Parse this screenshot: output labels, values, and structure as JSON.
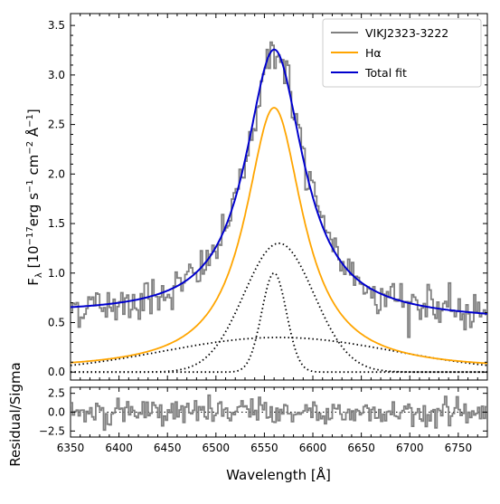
{
  "chart_data": [
    {
      "panel": "main",
      "type": "line",
      "xlim": [
        6350,
        6780
      ],
      "ylim": [
        -0.08,
        3.62
      ],
      "ylabel_main": "F",
      "ylabel_sub": "λ",
      "ylabel_rest": " [10",
      "ylabel_exp1": "−17",
      "ylabel_unit1": "erg s",
      "ylabel_exp2": "−1",
      "ylabel_unit2": " cm",
      "ylabel_exp3": "−2",
      "ylabel_unit3": " Å",
      "ylabel_exp4": "−1",
      "ylabel_end": "]",
      "xticks": [
        6350,
        6400,
        6450,
        6500,
        6550,
        6600,
        6650,
        6700,
        6750
      ],
      "yticks": [
        "0.0",
        "0.5",
        "1.0",
        "1.5",
        "2.0",
        "2.5",
        "3.0",
        "3.5"
      ],
      "ytick_values": [
        0.0,
        0.5,
        1.0,
        1.5,
        2.0,
        2.5,
        3.0,
        3.5
      ],
      "legend": {
        "placement": "top-right",
        "entries": [
          {
            "label": "VIKJ2323-3222",
            "color": "#808080"
          },
          {
            "label": "Hα",
            "color": "#FFA500"
          },
          {
            "label": "Total fit",
            "color": "#0000CD"
          }
        ]
      },
      "model": {
        "continuum": 0.5,
        "continuum_slope_per_A": -0.00014,
        "components": [
          {
            "name": "broad",
            "center": 6565,
            "fwhm": 280,
            "peak": 0.35
          },
          {
            "name": "intermediate",
            "center": 6565,
            "fwhm": 85,
            "peak": 1.3
          },
          {
            "name": "narrow",
            "center": 6560,
            "fwhm": 30,
            "peak": 1.0
          }
        ],
        "halpha_profile": {
          "center": 6560,
          "fwhm": 72,
          "peak": 2.65
        }
      },
      "spectrum_noise_sigma": 0.1,
      "colors": {
        "data": "#808080",
        "halpha": "#FFA500",
        "fit": "#0000CD",
        "components": "#000000"
      }
    },
    {
      "panel": "residual",
      "type": "line",
      "xlim": [
        6350,
        6780
      ],
      "ylim": [
        -3.3,
        3.3
      ],
      "ylabel": "Residual/Sigma",
      "yticks": [
        "2.5",
        "0.0",
        "−2.5"
      ],
      "ytick_values": [
        2.5,
        0.0,
        -2.5
      ],
      "xlabel": "Wavelength [Å]",
      "xticks": [
        "6350",
        "6400",
        "6450",
        "6500",
        "6550",
        "6600",
        "6650",
        "6700",
        "6750"
      ],
      "noise_sigma": 1.0
    }
  ]
}
